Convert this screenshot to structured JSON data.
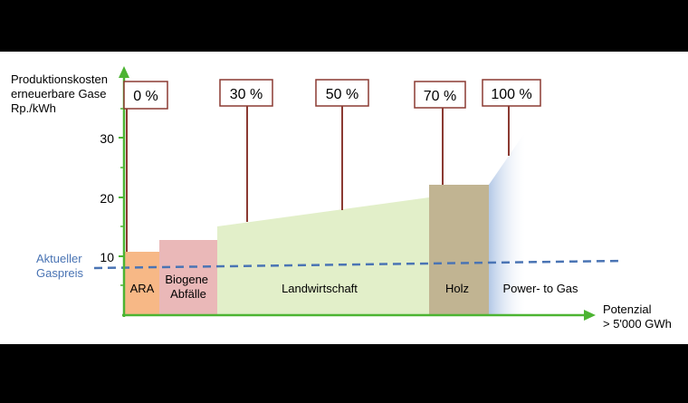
{
  "y_axis": {
    "title_lines": [
      "Produktionskosten",
      "erneuerbare Gase",
      "Rp./kWh"
    ],
    "ticks": [
      "10",
      "20",
      "30"
    ]
  },
  "x_axis": {
    "title_lines": [
      "Potenzial",
      "> 5'000 GWh"
    ]
  },
  "gas_price": {
    "label_lines": [
      "Aktueller",
      "Gaspreis"
    ],
    "color": "#4a74b4"
  },
  "segments": [
    {
      "label_lines": [
        "ARA"
      ],
      "color": "#f7b886"
    },
    {
      "label_lines": [
        "Biogene",
        "Abfälle"
      ],
      "color": "#eab8b8"
    },
    {
      "label_lines": [
        "Landwirtschaft"
      ],
      "color": "#e2efc9"
    },
    {
      "label_lines": [
        "Holz"
      ],
      "color": "#c1b492"
    },
    {
      "label_lines": [
        "Power- to Gas"
      ],
      "color": "#c3d4ea"
    }
  ],
  "markers": [
    "0 %",
    "30 %",
    "50 %",
    "70 %",
    "100 %"
  ],
  "colors": {
    "axis": "#4cb432",
    "callout_border": "#8b3a32",
    "background": "#ffffff"
  }
}
